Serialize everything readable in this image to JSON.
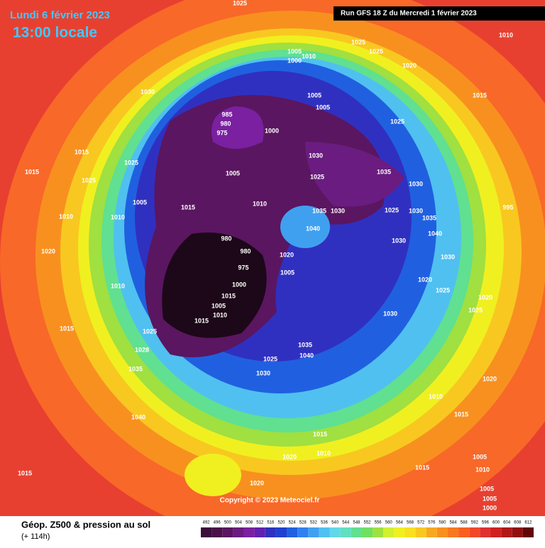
{
  "header": {
    "title": "Lundi 6 février 2023",
    "time": "13:00 locale",
    "run": "Run GFS 18 Z du Mercredi 1 février 2023"
  },
  "map": {
    "copyright": "Copyright © 2023 Meteociel.fr",
    "pressure_labels": [
      1025,
      1010,
      1005,
      1010,
      1000,
      1025,
      1025,
      1020,
      1030,
      1015,
      985,
      980,
      975,
      1005,
      1005,
      1000,
      1025,
      1015,
      1025,
      1030,
      1025,
      1035,
      1005,
      1015,
      1025,
      1030,
      1005,
      1015,
      1010,
      1035,
      1030,
      1025,
      1030,
      995,
      1010,
      1010,
      1040,
      1035,
      1040,
      1030,
      980,
      980,
      1020,
      1020,
      975,
      1005,
      1030,
      1020,
      1025,
      1010,
      1000,
      1015,
      1005,
      1010,
      1015,
      1020,
      1025,
      1030,
      1015,
      1025,
      1035,
      1040,
      1025,
      1028,
      1035,
      1030,
      1020,
      1010,
      1040,
      1015,
      1015,
      1010,
      1020,
      1005,
      1010,
      1015,
      1015,
      1020,
      1005,
      1005,
      1000
    ]
  },
  "legend": {
    "title": "Géop. Z500 & pression au sol",
    "subtitle": "(+ 114h)",
    "labels": [
      492,
      496,
      500,
      504,
      508,
      512,
      516,
      520,
      524,
      528,
      532,
      536,
      540,
      544,
      548,
      552,
      556,
      560,
      564,
      568,
      572,
      576,
      580,
      584,
      588,
      592,
      596,
      600,
      604,
      608,
      612
    ],
    "colors": [
      "#3c0c3c",
      "#4a1048",
      "#5a1660",
      "#6a1c80",
      "#7a20a0",
      "#6020b0",
      "#3030c0",
      "#2040d0",
      "#2060e0",
      "#3080f0",
      "#40a0f0",
      "#50c0f0",
      "#60d8e8",
      "#60e0c0",
      "#60e090",
      "#70e060",
      "#a0e040",
      "#d0f030",
      "#f0f020",
      "#f8e020",
      "#f8c820",
      "#f8a820",
      "#f89020",
      "#f87820",
      "#f86020",
      "#f04828",
      "#e03030",
      "#d02020",
      "#b01818",
      "#901010",
      "#600808"
    ]
  }
}
